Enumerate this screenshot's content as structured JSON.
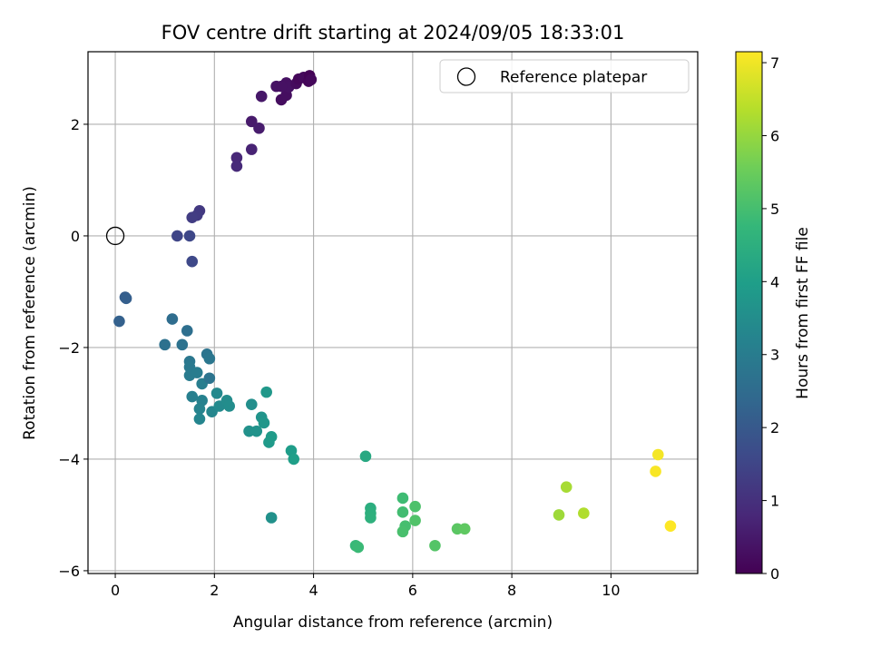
{
  "chart_data": {
    "type": "scatter",
    "title": "FOV centre drift starting at 2024/09/05 18:33:01",
    "xlabel": "Angular distance from reference (arcmin)",
    "ylabel": "Rotation from reference (arcmin)",
    "xlim": [
      -0.55,
      11.75
    ],
    "ylim": [
      -6.05,
      3.3
    ],
    "x_ticks": [
      0,
      2,
      4,
      6,
      8,
      10
    ],
    "y_ticks": [
      -6,
      -4,
      -2,
      0,
      2
    ],
    "x_tick_labels": [
      "0",
      "2",
      "4",
      "6",
      "8",
      "10"
    ],
    "y_tick_labels": [
      "−6",
      "−4",
      "−2",
      "0",
      "2"
    ],
    "grid": true,
    "legend": {
      "placement": "top-right",
      "entries": [
        {
          "label": "Reference platepar",
          "marker": "open-circle"
        }
      ]
    },
    "reference_point": {
      "x": 0,
      "y": 0
    },
    "colorbar": {
      "label": "Hours from first FF file",
      "colormap": "viridis",
      "range": [
        0,
        7.15
      ],
      "ticks": [
        0,
        1,
        2,
        3,
        4,
        5,
        6,
        7
      ],
      "tick_labels": [
        "0",
        "1",
        "2",
        "3",
        "4",
        "5",
        "6",
        "7"
      ]
    },
    "colormap_stops": [
      "#440154",
      "#482878",
      "#3e4989",
      "#31688e",
      "#26828e",
      "#1f9e89",
      "#35b779",
      "#6ece58",
      "#b5de2b",
      "#fde725"
    ],
    "series": [
      {
        "fields": [
          "x",
          "y",
          "hours"
        ],
        "points": [
          [
            3.35,
            2.44
          ],
          [
            3.45,
            2.52
          ],
          [
            3.45,
            2.74
          ],
          [
            3.5,
            2.67
          ],
          [
            3.65,
            2.73
          ],
          [
            3.7,
            2.81
          ],
          [
            3.8,
            2.84
          ],
          [
            3.9,
            2.77
          ],
          [
            3.92,
            2.87
          ],
          [
            3.95,
            2.8
          ],
          [
            3.25,
            2.68
          ],
          [
            3.35,
            2.68
          ],
          [
            2.95,
            2.5
          ],
          [
            2.75,
            2.05
          ],
          [
            2.9,
            1.93
          ],
          [
            2.75,
            1.55
          ],
          [
            2.45,
            1.4
          ],
          [
            2.45,
            1.25
          ],
          [
            1.7,
            0.45
          ],
          [
            1.65,
            0.37
          ],
          [
            1.55,
            0.33
          ],
          [
            1.25,
            0.0
          ],
          [
            1.5,
            0.0
          ],
          [
            1.55,
            -0.46
          ],
          [
            0.2,
            -1.1
          ],
          [
            0.22,
            -1.12
          ],
          [
            0.08,
            -1.53
          ],
          [
            1.15,
            -1.49
          ],
          [
            1.45,
            -1.7
          ],
          [
            1.0,
            -1.95
          ],
          [
            1.35,
            -1.95
          ],
          [
            1.85,
            -2.12
          ],
          [
            1.9,
            -2.2
          ],
          [
            1.5,
            -2.25
          ],
          [
            1.5,
            -2.35
          ],
          [
            1.5,
            -2.5
          ],
          [
            1.65,
            -2.45
          ],
          [
            1.75,
            -2.65
          ],
          [
            1.9,
            -2.55
          ],
          [
            1.55,
            -2.88
          ],
          [
            1.75,
            -2.95
          ],
          [
            1.7,
            -3.1
          ],
          [
            1.7,
            -3.28
          ],
          [
            1.95,
            -3.15
          ],
          [
            2.05,
            -2.82
          ],
          [
            2.1,
            -3.05
          ],
          [
            2.25,
            -2.95
          ],
          [
            2.3,
            -3.05
          ],
          [
            2.75,
            -3.02
          ],
          [
            2.7,
            -3.5
          ],
          [
            2.85,
            -3.5
          ],
          [
            2.95,
            -3.25
          ],
          [
            3.0,
            -3.35
          ],
          [
            3.05,
            -2.8
          ],
          [
            3.1,
            -3.7
          ],
          [
            3.15,
            -3.6
          ],
          [
            3.55,
            -3.85
          ],
          [
            3.6,
            -4.0
          ],
          [
            3.15,
            -5.05
          ],
          [
            5.05,
            -3.95
          ],
          [
            5.15,
            -4.88
          ],
          [
            5.15,
            -4.97
          ],
          [
            5.15,
            -5.05
          ],
          [
            4.85,
            -5.55
          ],
          [
            4.9,
            -5.58
          ],
          [
            5.8,
            -4.7
          ],
          [
            5.8,
            -4.95
          ],
          [
            5.85,
            -5.2
          ],
          [
            5.8,
            -5.3
          ],
          [
            6.05,
            -4.85
          ],
          [
            6.05,
            -5.1
          ],
          [
            6.45,
            -5.55
          ],
          [
            6.9,
            -5.25
          ],
          [
            7.05,
            -5.25
          ],
          [
            8.95,
            -5.0
          ],
          [
            9.1,
            -4.5
          ],
          [
            9.45,
            -4.97
          ],
          [
            10.95,
            -3.92
          ],
          [
            10.9,
            -4.22
          ],
          [
            11.2,
            -5.2
          ]
        ],
        "hours": [
          0.25,
          0.27,
          0.3,
          0.32,
          0.2,
          0.12,
          0.18,
          0.1,
          0.05,
          0.15,
          0.35,
          0.33,
          0.45,
          0.5,
          0.55,
          0.7,
          0.8,
          0.85,
          1.2,
          1.25,
          1.3,
          1.5,
          1.55,
          1.6,
          2.1,
          2.15,
          2.2,
          2.55,
          2.6,
          2.65,
          2.7,
          2.75,
          2.8,
          2.85,
          2.9,
          2.95,
          3.0,
          3.05,
          2.75,
          3.1,
          3.15,
          3.2,
          3.25,
          3.3,
          3.35,
          3.4,
          3.45,
          3.5,
          3.55,
          3.6,
          3.65,
          3.7,
          3.75,
          3.8,
          3.85,
          3.9,
          3.95,
          4.0,
          3.6,
          4.3,
          4.45,
          4.5,
          4.55,
          4.8,
          4.85,
          4.9,
          4.95,
          5.0,
          5.05,
          5.1,
          5.15,
          5.2,
          5.3,
          5.35,
          6.1,
          6.2,
          6.3,
          7.05,
          7.1,
          7.15
        ]
      }
    ]
  }
}
